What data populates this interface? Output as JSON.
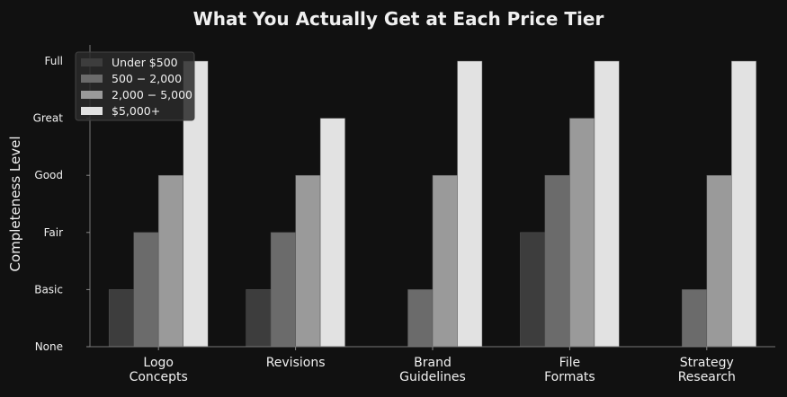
{
  "chart_data": {
    "type": "bar",
    "title": "What You Actually Get at Each Price Tier",
    "xlabel": "",
    "ylabel": "Completeness Level",
    "categories": [
      [
        "Logo",
        "Concepts"
      ],
      [
        "Revisions"
      ],
      [
        "Brand",
        "Guidelines"
      ],
      [
        "File",
        "Formats"
      ],
      [
        "Strategy",
        "Research"
      ]
    ],
    "y_tick_labels": [
      "None",
      "Basic",
      "Fair",
      "Good",
      "Great",
      "Full"
    ],
    "ylim": [
      0,
      5
    ],
    "grid": false,
    "legend_position": "top-left",
    "series": [
      {
        "name": "Under $500",
        "color": "#3d3d3d",
        "values": [
          1,
          1,
          0,
          2,
          0
        ]
      },
      {
        "name": "500 − 2,000",
        "color": "#6b6b6b",
        "values": [
          2,
          2,
          1,
          3,
          1
        ]
      },
      {
        "name": "2,000 − 5,000",
        "color": "#9a9a9a",
        "values": [
          3,
          3,
          3,
          4,
          3
        ]
      },
      {
        "name": "$5,000+",
        "color": "#e2e2e2",
        "values": [
          5,
          4,
          5,
          5,
          5
        ]
      }
    ]
  }
}
